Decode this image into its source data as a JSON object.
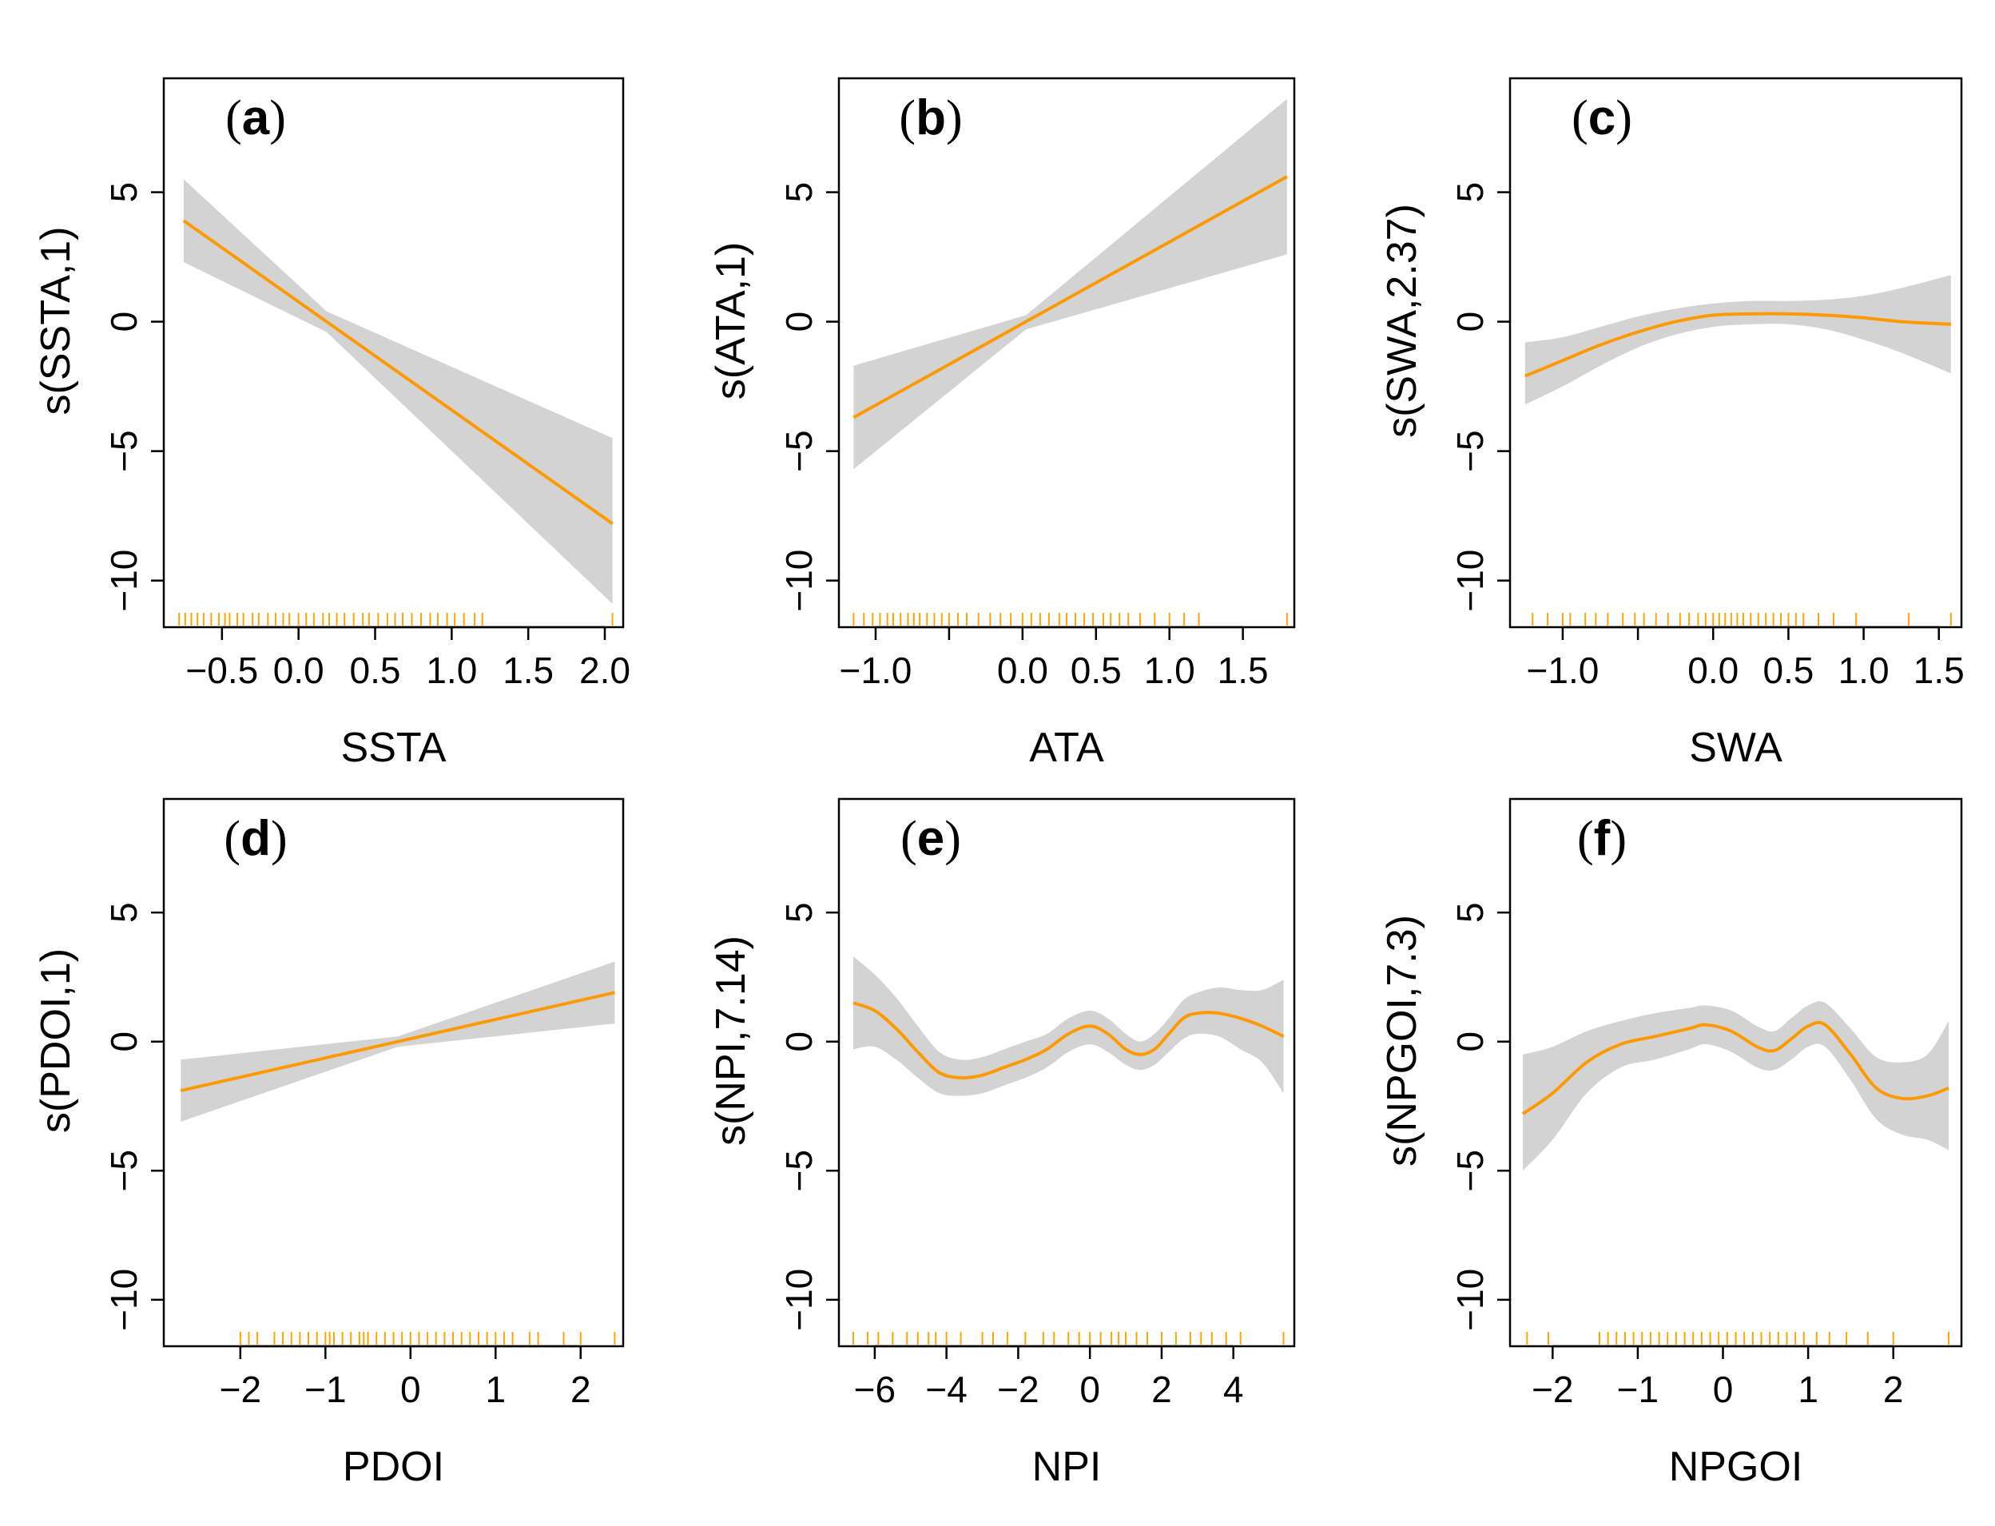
{
  "colors": {
    "line": "#ff9900",
    "band": "#d3d3d3",
    "rug": "#ffa500",
    "axis": "#000000"
  },
  "chart_data": [
    {
      "type": "line",
      "panel": "(a)",
      "letter": "a",
      "xlabel": "SSTA",
      "ylabel": "s(SSTA,1)",
      "xlim": [
        -0.88,
        2.12
      ],
      "ylim": [
        -11.8,
        9.4
      ],
      "xticks": [
        -0.5,
        0.0,
        0.5,
        1.0,
        1.5,
        2.0
      ],
      "xtick_labels": [
        "−0.5",
        "0.0",
        "0.5",
        "1.0",
        "1.5",
        "2.0"
      ],
      "yticks": [
        -10,
        -5,
        0,
        5
      ],
      "ytick_labels": [
        "−10",
        "−5",
        "0",
        "5"
      ],
      "fit": {
        "x": [
          -0.75,
          2.05
        ],
        "y": [
          3.9,
          -7.8
        ]
      },
      "band_upper": [
        5.5,
        0.4,
        -4.5
      ],
      "band_lower": [
        2.3,
        -0.4,
        -10.9
      ],
      "rug": [
        -0.78,
        -0.74,
        -0.7,
        -0.66,
        -0.62,
        -0.57,
        -0.52,
        -0.48,
        -0.45,
        -0.4,
        -0.36,
        -0.3,
        -0.26,
        -0.2,
        -0.15,
        -0.1,
        -0.06,
        0.0,
        0.05,
        0.1,
        0.16,
        0.2,
        0.25,
        0.3,
        0.36,
        0.42,
        0.46,
        0.52,
        0.58,
        0.63,
        0.68,
        0.74,
        0.8,
        0.86,
        0.91,
        0.97,
        1.02,
        1.08,
        1.15,
        1.2,
        2.05
      ]
    },
    {
      "type": "line",
      "panel": "(b)",
      "letter": "b",
      "xlabel": "ATA",
      "ylabel": "s(ATA,1)",
      "xlim": [
        -1.25,
        1.85
      ],
      "ylim": [
        -11.8,
        9.4
      ],
      "xticks": [
        -1.0,
        -0.5,
        0.0,
        0.5,
        1.0,
        1.5
      ],
      "xtick_labels": [
        "−1.0",
        "",
        "0.0",
        "0.5",
        "1.0",
        "1.5"
      ],
      "yticks": [
        -10,
        -5,
        0,
        5
      ],
      "ytick_labels": [
        "−10",
        "−5",
        "0",
        "5"
      ],
      "fit": {
        "x": [
          -1.15,
          1.8
        ],
        "y": [
          -3.7,
          5.6
        ]
      },
      "band_upper": [
        -1.7,
        0.25,
        8.6
      ],
      "band_lower": [
        -5.7,
        -0.3,
        2.6
      ],
      "rug": [
        -1.15,
        -1.08,
        -1.02,
        -0.97,
        -0.92,
        -0.88,
        -0.83,
        -0.78,
        -0.74,
        -0.7,
        -0.65,
        -0.6,
        -0.55,
        -0.5,
        -0.44,
        -0.38,
        -0.3,
        -0.22,
        -0.15,
        -0.08,
        0.0,
        0.06,
        0.12,
        0.18,
        0.25,
        0.3,
        0.36,
        0.42,
        0.48,
        0.55,
        0.6,
        0.66,
        0.72,
        0.8,
        0.9,
        1.0,
        1.1,
        1.2,
        1.8
      ]
    },
    {
      "type": "line",
      "panel": "(c)",
      "letter": "c",
      "xlabel": "SWA",
      "ylabel": "s(SWA,2.37)",
      "xlim": [
        -1.35,
        1.65
      ],
      "ylim": [
        -11.8,
        9.4
      ],
      "xticks": [
        -1.0,
        -0.5,
        0.0,
        0.5,
        1.0,
        1.5
      ],
      "xtick_labels": [
        "−1.0",
        "",
        "0.0",
        "0.5",
        "1.0",
        "1.5"
      ],
      "yticks": [
        -10,
        -5,
        0,
        5
      ],
      "ytick_labels": [
        "−10",
        "−5",
        "0",
        "5"
      ],
      "fit": {
        "x": [
          -1.25,
          -1.0,
          -0.75,
          -0.5,
          -0.25,
          0.0,
          0.25,
          0.5,
          0.75,
          1.0,
          1.25,
          1.58
        ],
        "y": [
          -2.1,
          -1.5,
          -0.9,
          -0.4,
          0.0,
          0.25,
          0.3,
          0.3,
          0.25,
          0.15,
          0.0,
          -0.1
        ]
      },
      "band_upper": [
        -0.8,
        -0.6,
        -0.2,
        0.2,
        0.5,
        0.7,
        0.8,
        0.8,
        0.85,
        1.0,
        1.3,
        1.8
      ],
      "band_lower": [
        -3.2,
        -2.5,
        -1.7,
        -1.0,
        -0.5,
        -0.2,
        -0.1,
        -0.1,
        -0.3,
        -0.7,
        -1.2,
        -2.0
      ],
      "rug": [
        -1.2,
        -1.1,
        -1.0,
        -0.95,
        -0.85,
        -0.78,
        -0.7,
        -0.6,
        -0.52,
        -0.46,
        -0.38,
        -0.3,
        -0.22,
        -0.16,
        -0.1,
        -0.05,
        0.0,
        0.04,
        0.08,
        0.12,
        0.16,
        0.2,
        0.25,
        0.3,
        0.35,
        0.4,
        0.45,
        0.5,
        0.55,
        0.6,
        0.7,
        0.8,
        0.95,
        1.3,
        1.58
      ]
    },
    {
      "type": "line",
      "panel": "(d)",
      "letter": "d",
      "xlabel": "PDOI",
      "ylabel": "s(PDOI,1)",
      "xlim": [
        -2.9,
        2.5
      ],
      "ylim": [
        -11.8,
        9.4
      ],
      "xticks": [
        -2,
        -1,
        0,
        1,
        2
      ],
      "xtick_labels": [
        "−2",
        "−1",
        "0",
        "1",
        "2"
      ],
      "yticks": [
        -10,
        -5,
        0,
        5
      ],
      "ytick_labels": [
        "−10",
        "−5",
        "0",
        "5"
      ],
      "fit": {
        "x": [
          -2.7,
          2.4
        ],
        "y": [
          -1.9,
          1.9
        ]
      },
      "band_upper": [
        -0.7,
        0.2,
        3.1
      ],
      "band_lower": [
        -3.1,
        -0.2,
        0.7
      ],
      "rug": [
        -2.0,
        -1.9,
        -1.8,
        -1.6,
        -1.5,
        -1.4,
        -1.3,
        -1.2,
        -1.1,
        -1.0,
        -0.95,
        -0.9,
        -0.8,
        -0.7,
        -0.6,
        -0.55,
        -0.5,
        -0.4,
        -0.3,
        -0.2,
        -0.1,
        0.0,
        0.1,
        0.2,
        0.3,
        0.4,
        0.5,
        0.6,
        0.7,
        0.8,
        0.9,
        1.0,
        1.1,
        1.2,
        1.4,
        1.5,
        1.8,
        2.0,
        2.4
      ]
    },
    {
      "type": "line",
      "panel": "(e)",
      "letter": "e",
      "xlabel": "NPI",
      "ylabel": "s(NPI,7.14)",
      "xlim": [
        -7.0,
        5.7
      ],
      "ylim": [
        -11.8,
        9.4
      ],
      "xticks": [
        -6,
        -4,
        -2,
        0,
        2,
        4
      ],
      "xtick_labels": [
        "−6",
        "−4",
        "−2",
        "0",
        "2",
        "4"
      ],
      "yticks": [
        -10,
        -5,
        0,
        5
      ],
      "ytick_labels": [
        "−10",
        "−5",
        "0",
        "5"
      ],
      "fit": {
        "x": [
          -6.6,
          -6.0,
          -5.4,
          -4.8,
          -4.2,
          -3.6,
          -3.0,
          -2.4,
          -1.8,
          -1.2,
          -0.6,
          0.0,
          0.5,
          1.0,
          1.4,
          1.8,
          2.2,
          2.6,
          3.0,
          3.6,
          4.2,
          4.8,
          5.4
        ],
        "y": [
          1.5,
          1.2,
          0.5,
          -0.4,
          -1.2,
          -1.4,
          -1.3,
          -1.0,
          -0.7,
          -0.3,
          0.3,
          0.6,
          0.3,
          -0.3,
          -0.5,
          -0.3,
          0.3,
          0.9,
          1.1,
          1.1,
          0.9,
          0.6,
          0.2
        ]
      },
      "band_upper": [
        3.3,
        2.6,
        1.7,
        0.6,
        -0.4,
        -0.7,
        -0.6,
        -0.3,
        0.0,
        0.3,
        0.9,
        1.2,
        0.9,
        0.3,
        0.0,
        0.3,
        0.9,
        1.6,
        1.9,
        2.1,
        2.0,
        2.0,
        2.4
      ],
      "band_lower": [
        -0.3,
        -0.2,
        -0.7,
        -1.4,
        -2.0,
        -2.1,
        -2.0,
        -1.7,
        -1.4,
        -1.0,
        -0.4,
        -0.1,
        -0.4,
        -0.9,
        -1.1,
        -0.9,
        -0.4,
        0.1,
        0.3,
        0.2,
        -0.3,
        -0.8,
        -2.0
      ],
      "rug": [
        -6.6,
        -6.2,
        -5.9,
        -5.5,
        -5.1,
        -4.8,
        -4.5,
        -4.3,
        -4.0,
        -3.6,
        -3.0,
        -2.7,
        -2.3,
        -1.8,
        -1.3,
        -1.0,
        -0.6,
        -0.3,
        0.0,
        0.3,
        0.6,
        0.8,
        1.0,
        1.3,
        1.6,
        2.0,
        2.4,
        2.8,
        3.1,
        3.4,
        3.8,
        4.2,
        5.4
      ]
    },
    {
      "type": "line",
      "panel": "(f)",
      "letter": "f",
      "xlabel": "NPGOI",
      "ylabel": "s(NPGOI,7.3)",
      "xlim": [
        -2.5,
        2.8
      ],
      "ylim": [
        -11.8,
        9.4
      ],
      "xticks": [
        -2,
        -1,
        0,
        1,
        2
      ],
      "xtick_labels": [
        "−2",
        "−1",
        "0",
        "1",
        "2"
      ],
      "yticks": [
        -10,
        -5,
        0,
        5
      ],
      "ytick_labels": [
        "−10",
        "−5",
        "0",
        "5"
      ],
      "fit": {
        "x": [
          -2.35,
          -2.0,
          -1.6,
          -1.2,
          -0.8,
          -0.4,
          -0.2,
          0.1,
          0.4,
          0.6,
          0.8,
          1.0,
          1.2,
          1.5,
          1.8,
          2.1,
          2.4,
          2.65
        ],
        "y": [
          -2.8,
          -2.0,
          -0.8,
          -0.1,
          0.2,
          0.5,
          0.65,
          0.4,
          -0.2,
          -0.35,
          0.1,
          0.6,
          0.65,
          -0.5,
          -1.8,
          -2.2,
          -2.1,
          -1.8
        ]
      },
      "band_upper": [
        -0.5,
        -0.2,
        0.4,
        0.8,
        1.1,
        1.3,
        1.4,
        1.2,
        0.6,
        0.4,
        0.9,
        1.4,
        1.5,
        0.5,
        -0.6,
        -0.8,
        -0.5,
        0.8
      ],
      "band_lower": [
        -5.0,
        -3.8,
        -2.0,
        -1.0,
        -0.7,
        -0.3,
        -0.1,
        -0.4,
        -1.0,
        -1.1,
        -0.7,
        -0.2,
        -0.2,
        -1.5,
        -3.0,
        -3.6,
        -3.8,
        -4.2
      ],
      "rug": [
        -2.3,
        -2.05,
        -1.45,
        -1.35,
        -1.25,
        -1.15,
        -1.05,
        -0.95,
        -0.85,
        -0.75,
        -0.65,
        -0.55,
        -0.45,
        -0.35,
        -0.25,
        -0.15,
        -0.05,
        0.05,
        0.15,
        0.25,
        0.35,
        0.45,
        0.55,
        0.65,
        0.75,
        0.85,
        0.95,
        1.1,
        1.25,
        1.45,
        1.7,
        2.0,
        2.65
      ]
    }
  ]
}
